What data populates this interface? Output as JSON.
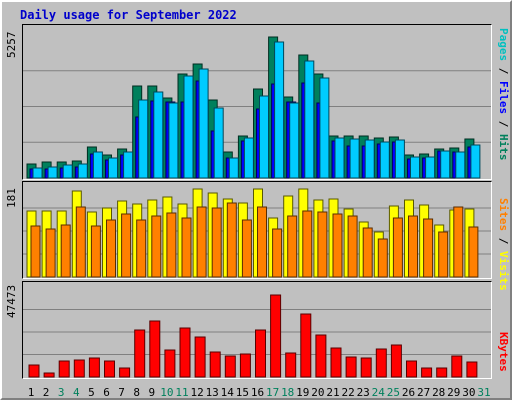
{
  "chart_data": {
    "type": "bar",
    "title": "Daily usage for September 2022",
    "categories": [
      "1",
      "2",
      "3",
      "4",
      "5",
      "6",
      "7",
      "8",
      "9",
      "10",
      "11",
      "12",
      "13",
      "14",
      "15",
      "16",
      "17",
      "18",
      "19",
      "20",
      "21",
      "22",
      "23",
      "24",
      "25",
      "26",
      "27",
      "28",
      "29",
      "30",
      "31"
    ],
    "weekend_days": [
      "3",
      "4",
      "10",
      "11",
      "17",
      "18",
      "24",
      "25",
      "31"
    ],
    "panels": [
      {
        "id": "top",
        "ymax": 5257,
        "ymax_label": "5257",
        "right_label": [
          "Pages",
          " / ",
          "Files",
          " / ",
          "Hits"
        ],
        "right_label_colors": [
          "#00c0c0",
          "#000000",
          "#0000ff",
          "#000000",
          "#00805c"
        ],
        "series": [
          {
            "name": "Hits",
            "color": "#00805c",
            "values": [
              530,
              580,
              600,
              620,
              1140,
              830,
              1060,
              3380,
              3390,
              2950,
              3820,
              4180,
              2870,
              960,
              1560,
              3280,
              5180,
              2990,
              4510,
              3830,
              1550,
              1560,
              1540,
              1480,
              1500,
              860,
              900,
              1070,
              1110,
              1420
            ]
          },
          {
            "name": "Files",
            "color": "#0000ff",
            "values": [
              330,
              340,
              360,
              400,
              890,
              650,
              860,
              2240,
              2840,
              2780,
              2780,
              3550,
              1730,
              720,
              1370,
              2520,
              3440,
              2810,
              3500,
              2740,
              1370,
              1180,
              1190,
              1240,
              1340,
              710,
              730,
              980,
              950,
              1130
            ]
          },
          {
            "name": "Pages",
            "color": "#00ccff",
            "values": [
              350,
              410,
              460,
              520,
              960,
              720,
              950,
              2870,
              3170,
              2750,
              3740,
              4010,
              2580,
              720,
              1470,
              3030,
              4990,
              2740,
              4290,
              3690,
              1470,
              1440,
              1410,
              1330,
              1400,
              760,
              790,
              1010,
              950,
              1230
            ]
          }
        ]
      },
      {
        "id": "middle",
        "ymax": 181,
        "ymax_label": "181",
        "right_label": [
          "Sites",
          " / ",
          "Visits"
        ],
        "right_label_colors": [
          "#ff8000",
          "#000000",
          "#ffff00"
        ],
        "series": [
          {
            "name": "Visits",
            "color": "#ffff00",
            "values": [
              129,
              130,
              129,
              169,
              128,
              136,
              149,
              143,
              152,
              158,
              144,
              174,
              165,
              153,
              145,
              173,
              117,
              160,
              173,
              152,
              154,
              134,
              109,
              89,
              139,
              151,
              141,
              103,
              131,
              133
            ]
          },
          {
            "name": "Sites",
            "color": "#ff8000",
            "values": [
              100,
              94,
              102,
              137,
              101,
              112,
              123,
              113,
              120,
              126,
              117,
              138,
              135,
              146,
              112,
              138,
              94,
              120,
              129,
              127,
              123,
              120,
              96,
              74,
              116,
              120,
              115,
              89,
              138,
              99
            ]
          }
        ]
      },
      {
        "id": "bottom",
        "ymax": 47473,
        "ymax_label": "47473",
        "right_label": [
          "KBytes"
        ],
        "right_label_colors": [
          "#ff0000"
        ],
        "series": [
          {
            "name": "KBytes",
            "color": "#ff0000",
            "values": [
              6300,
              2000,
              8400,
              8800,
              9800,
              8500,
              4600,
              24600,
              29800,
              14300,
              25800,
              21000,
              13000,
              11000,
              12300,
              25000,
              43200,
              12800,
              33200,
              22300,
              15400,
              10700,
              10100,
              14700,
              16900,
              8200,
              4600,
              4800,
              10900,
              8000
            ]
          }
        ]
      }
    ]
  }
}
